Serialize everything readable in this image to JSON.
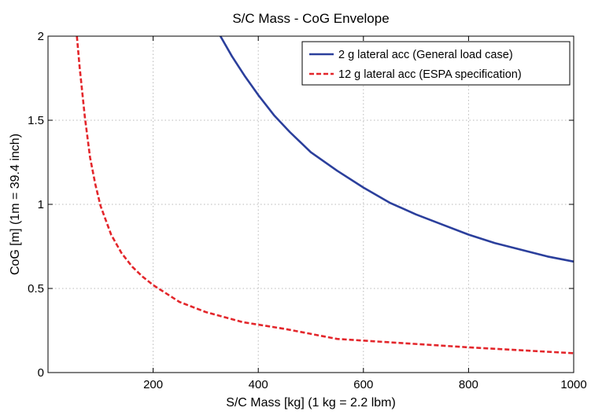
{
  "chart_data": {
    "type": "line",
    "title": "S/C Mass - CoG Envelope",
    "xlabel": "S/C Mass [kg] (1 kg = 2.2 lbm)",
    "ylabel": "CoG [m] (1m = 39.4 inch)",
    "xlim": [
      0,
      1000
    ],
    "ylim": [
      0,
      2
    ],
    "xticks": [
      200,
      400,
      600,
      800,
      1000
    ],
    "xtick_labels": [
      "200",
      "400",
      "600",
      "800",
      "1000"
    ],
    "yticks": [
      0,
      0.5,
      1,
      1.5,
      2
    ],
    "ytick_labels": [
      "0",
      "0.5",
      "1",
      "1.5",
      "2"
    ],
    "grid": true,
    "legend_position": "top-right",
    "series": [
      {
        "name": "2 g lateral acc (General load case)",
        "color": "#2b3f9c",
        "style": "solid",
        "x": [
          328,
          350,
          375,
          400,
          430,
          460,
          500,
          550,
          600,
          650,
          700,
          750,
          800,
          850,
          900,
          950,
          1000
        ],
        "y": [
          2.0,
          1.88,
          1.76,
          1.65,
          1.53,
          1.43,
          1.31,
          1.2,
          1.1,
          1.01,
          0.94,
          0.88,
          0.82,
          0.77,
          0.73,
          0.69,
          0.66
        ]
      },
      {
        "name": "12 g lateral acc (ESPA specification)",
        "color": "#e3262b",
        "style": "dashed",
        "x": [
          55,
          60,
          70,
          80,
          90,
          100,
          120,
          140,
          160,
          180,
          200,
          250,
          300,
          370,
          450,
          550,
          650,
          800,
          1000
        ],
        "y": [
          2.0,
          1.82,
          1.52,
          1.28,
          1.12,
          0.99,
          0.82,
          0.71,
          0.63,
          0.57,
          0.52,
          0.42,
          0.36,
          0.3,
          0.26,
          0.2,
          0.18,
          0.15,
          0.115
        ]
      }
    ]
  }
}
